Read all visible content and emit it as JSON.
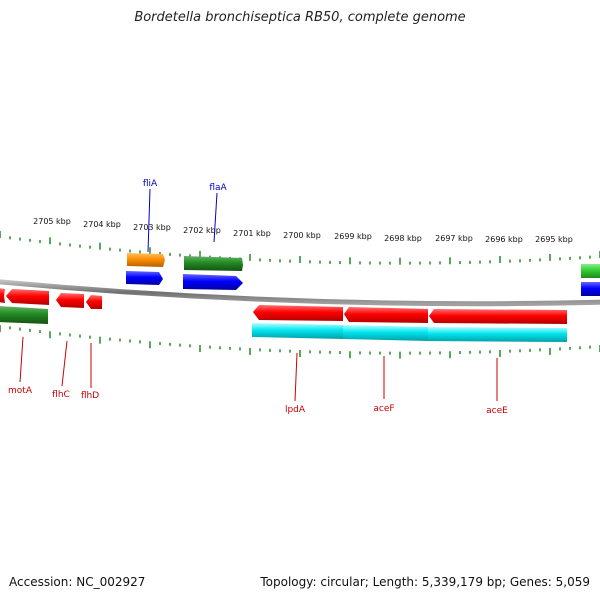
{
  "title": "Bordetella bronchiseptica RB50, complete genome",
  "footer": {
    "accession": "Accession: NC_002927",
    "summary": "Topology: circular; Length: 5,339,179 bp; Genes: 5,059"
  },
  "colors": {
    "backbone": "#808080",
    "tick": "#228b22",
    "forward_gene_label": "#0000cc",
    "reverse_gene_label": "#cc0000",
    "gene_red": "#ff0000",
    "gene_orange": "#ff8c00",
    "gene_green": "#228b22",
    "gene_lightgreen": "#33cc33",
    "gene_blue": "#0000ff",
    "gene_cyan": "#00e5ee"
  },
  "kbp_labels": [
    "2705 kbp",
    "2704 kbp",
    "2703 kbp",
    "2702 kbp",
    "2701 kbp",
    "2700 kbp",
    "2699 kbp",
    "2698 kbp",
    "2697 kbp",
    "2696 kbp",
    "2695 kbp"
  ],
  "gene_labels": {
    "forward": [
      "fliA",
      "flaA"
    ],
    "reverse": [
      "motA",
      "flhC",
      "flhD",
      "lpdA",
      "aceF",
      "aceE"
    ]
  }
}
